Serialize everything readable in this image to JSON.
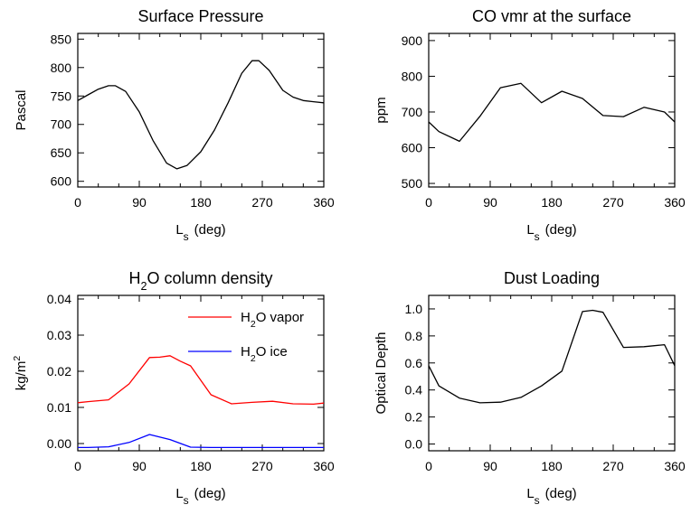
{
  "chart_data": [
    {
      "type": "line",
      "title": "Surface Pressure",
      "xlabel": "L",
      "xlabel_sub": "s",
      "xlabel_unit": "(deg)",
      "ylabel": "Pascal",
      "xlim": [
        0,
        360
      ],
      "ylim": [
        590,
        860
      ],
      "xticks": [
        "0",
        "90",
        "180",
        "270",
        "360"
      ],
      "yticks": [
        "600",
        "650",
        "700",
        "750",
        "800",
        "850"
      ],
      "series": [
        {
          "color": "#000000",
          "x": [
            0,
            15,
            30,
            45,
            55,
            70,
            90,
            110,
            130,
            145,
            160,
            180,
            200,
            220,
            240,
            255,
            265,
            280,
            300,
            315,
            330,
            345,
            360
          ],
          "y": [
            742,
            752,
            762,
            768,
            768,
            758,
            722,
            672,
            632,
            622,
            628,
            652,
            690,
            738,
            790,
            812,
            812,
            795,
            760,
            748,
            742,
            740,
            738
          ]
        }
      ]
    },
    {
      "type": "line",
      "title": "CO vmr at the surface",
      "xlabel": "L",
      "xlabel_sub": "s",
      "xlabel_unit": "(deg)",
      "ylabel": "ppm",
      "xlim": [
        0,
        360
      ],
      "ylim": [
        490,
        920
      ],
      "xticks": [
        "0",
        "90",
        "180",
        "270",
        "360"
      ],
      "yticks": [
        "500",
        "600",
        "700",
        "800",
        "900"
      ],
      "series": [
        {
          "color": "#000000",
          "x": [
            0,
            15,
            45,
            75,
            105,
            135,
            165,
            195,
            225,
            255,
            285,
            315,
            345,
            360
          ],
          "y": [
            672,
            645,
            618,
            688,
            768,
            780,
            726,
            758,
            738,
            690,
            687,
            713,
            700,
            672
          ]
        }
      ]
    },
    {
      "type": "line",
      "title": "H₂O column density",
      "xlabel": "L",
      "xlabel_sub": "s",
      "xlabel_unit": "(deg)",
      "ylabel": "kg/m²",
      "xlim": [
        0,
        360
      ],
      "ylim": [
        -0.002,
        0.041
      ],
      "xticks": [
        "0",
        "90",
        "180",
        "270",
        "360"
      ],
      "yticks": [
        "0.00",
        "0.01",
        "0.02",
        "0.03",
        "0.04"
      ],
      "legend": [
        {
          "label": "H₂O vapor",
          "color": "#ff0000"
        },
        {
          "label": "H₂O ice",
          "color": "#0000ff"
        }
      ],
      "series": [
        {
          "name": "H₂O vapor",
          "color": "#ff0000",
          "x": [
            0,
            15,
            45,
            75,
            105,
            120,
            135,
            150,
            165,
            195,
            225,
            255,
            285,
            315,
            345,
            360
          ],
          "y": [
            0.0113,
            0.0116,
            0.0121,
            0.0165,
            0.0238,
            0.0239,
            0.0243,
            0.0228,
            0.0215,
            0.0135,
            0.011,
            0.0114,
            0.0117,
            0.011,
            0.0109,
            0.0112
          ]
        },
        {
          "name": "H₂O ice",
          "color": "#0000ff",
          "x": [
            0,
            15,
            45,
            75,
            105,
            135,
            165,
            195,
            225,
            255,
            285,
            315,
            345,
            360
          ],
          "y": [
            -0.0011,
            -0.0011,
            -0.0009,
            0.0003,
            0.0025,
            0.0011,
            -0.001,
            -0.0011,
            -0.0011,
            -0.0011,
            -0.0011,
            -0.0011,
            -0.0011,
            -0.0011
          ]
        }
      ]
    },
    {
      "type": "line",
      "title": "Dust Loading",
      "xlabel": "L",
      "xlabel_sub": "s",
      "xlabel_unit": "(deg)",
      "ylabel": "Optical Depth",
      "xlim": [
        0,
        360
      ],
      "ylim": [
        -0.05,
        1.1
      ],
      "xticks": [
        "0",
        "90",
        "180",
        "270",
        "360"
      ],
      "yticks": [
        "0.0",
        "0.2",
        "0.4",
        "0.6",
        "0.8",
        "1.0"
      ],
      "series": [
        {
          "color": "#000000",
          "x": [
            0,
            15,
            45,
            75,
            105,
            135,
            165,
            195,
            225,
            240,
            255,
            285,
            315,
            345,
            360
          ],
          "y": [
            0.58,
            0.43,
            0.34,
            0.305,
            0.31,
            0.345,
            0.43,
            0.54,
            0.98,
            0.99,
            0.975,
            0.715,
            0.72,
            0.735,
            0.58
          ]
        }
      ]
    }
  ]
}
